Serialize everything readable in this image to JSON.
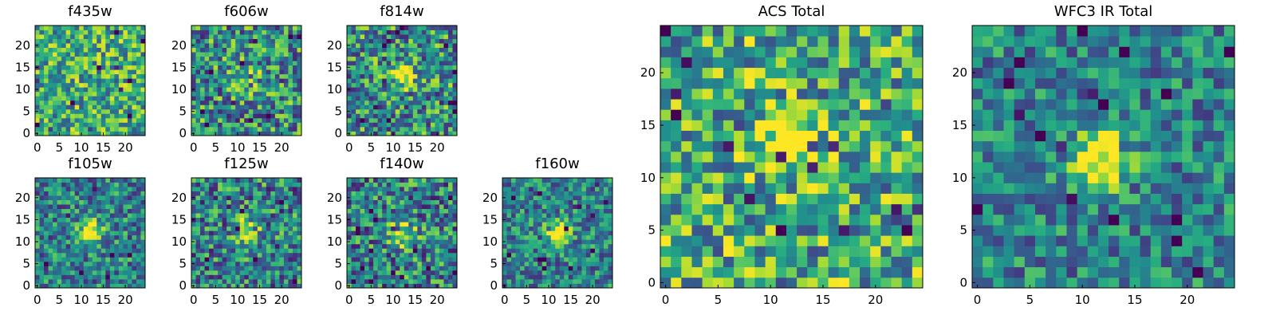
{
  "chart_data": [
    {
      "type": "heatmap",
      "title": "f435w",
      "xticks": [
        "0",
        "5",
        "10",
        "15",
        "20"
      ],
      "yticks": [
        "0",
        "5",
        "10",
        "15",
        "20"
      ],
      "xlim": [
        -0.5,
        24.5
      ],
      "ylim": [
        -0.5,
        24.5
      ],
      "grid": false,
      "colormap": "viridis",
      "source_peak": [
        12,
        12
      ],
      "source_strength": 0.0,
      "noise": 0.35
    },
    {
      "type": "heatmap",
      "title": "f606w",
      "xticks": [
        "0",
        "5",
        "10",
        "15",
        "20"
      ],
      "yticks": [
        "0",
        "5",
        "10",
        "15",
        "20"
      ],
      "xlim": [
        -0.5,
        24.5
      ],
      "ylim": [
        -0.5,
        24.5
      ],
      "grid": false,
      "colormap": "viridis",
      "source_peak": [
        12,
        13
      ],
      "source_strength": 0.2,
      "noise": 0.4
    },
    {
      "type": "heatmap",
      "title": "f814w",
      "xticks": [
        "0",
        "5",
        "10",
        "15",
        "20"
      ],
      "yticks": [
        "0",
        "5",
        "10",
        "15",
        "20"
      ],
      "xlim": [
        -0.5,
        24.5
      ],
      "ylim": [
        -0.5,
        24.5
      ],
      "grid": false,
      "colormap": "viridis",
      "source_peak": [
        12,
        13
      ],
      "source_strength": 0.4,
      "noise": 0.4
    },
    {
      "type": "heatmap",
      "title": "f105w",
      "xticks": [
        "0",
        "5",
        "10",
        "15",
        "20"
      ],
      "yticks": [
        "0",
        "5",
        "10",
        "15",
        "20"
      ],
      "xlim": [
        -0.5,
        24.5
      ],
      "ylim": [
        -0.5,
        24.5
      ],
      "grid": false,
      "colormap": "viridis",
      "source_peak": [
        12,
        12
      ],
      "source_strength": 0.6,
      "noise": 0.32
    },
    {
      "type": "heatmap",
      "title": "f125w",
      "xticks": [
        "0",
        "5",
        "10",
        "15",
        "20"
      ],
      "yticks": [
        "0",
        "5",
        "10",
        "15",
        "20"
      ],
      "xlim": [
        -0.5,
        24.5
      ],
      "ylim": [
        -0.5,
        24.5
      ],
      "grid": false,
      "colormap": "viridis",
      "source_peak": [
        12,
        12
      ],
      "source_strength": 0.55,
      "noise": 0.38
    },
    {
      "type": "heatmap",
      "title": "f140w",
      "xticks": [
        "0",
        "5",
        "10",
        "15",
        "20"
      ],
      "yticks": [
        "0",
        "5",
        "10",
        "15",
        "20"
      ],
      "xlim": [
        -0.5,
        24.5
      ],
      "ylim": [
        -0.5,
        24.5
      ],
      "grid": false,
      "colormap": "viridis",
      "source_peak": [
        12,
        12
      ],
      "source_strength": 0.55,
      "noise": 0.38
    },
    {
      "type": "heatmap",
      "title": "f160w",
      "xticks": [
        "0",
        "5",
        "10",
        "15",
        "20"
      ],
      "yticks": [
        "0",
        "5",
        "10",
        "15",
        "20"
      ],
      "xlim": [
        -0.5,
        24.5
      ],
      "ylim": [
        -0.5,
        24.5
      ],
      "grid": false,
      "colormap": "viridis",
      "source_peak": [
        12,
        12
      ],
      "source_strength": 0.6,
      "noise": 0.3
    },
    {
      "type": "heatmap",
      "title": "ACS Total",
      "xticks": [
        "0",
        "5",
        "10",
        "15",
        "20"
      ],
      "yticks": [
        "0",
        "5",
        "10",
        "15",
        "20"
      ],
      "xlim": [
        -0.5,
        24.5
      ],
      "ylim": [
        -0.5,
        24.5
      ],
      "grid": false,
      "colormap": "viridis",
      "source_peak": [
        12,
        13
      ],
      "source_strength": 0.4,
      "noise": 0.38
    },
    {
      "type": "heatmap",
      "title": "WFC3 IR Total",
      "xticks": [
        "0",
        "5",
        "10",
        "15",
        "20"
      ],
      "yticks": [
        "0",
        "5",
        "10",
        "15",
        "20"
      ],
      "xlim": [
        -0.5,
        24.5
      ],
      "ylim": [
        -0.5,
        24.5
      ],
      "grid": false,
      "colormap": "viridis",
      "source_peak": [
        12,
        12
      ],
      "source_strength": 0.65,
      "noise": 0.28
    }
  ]
}
